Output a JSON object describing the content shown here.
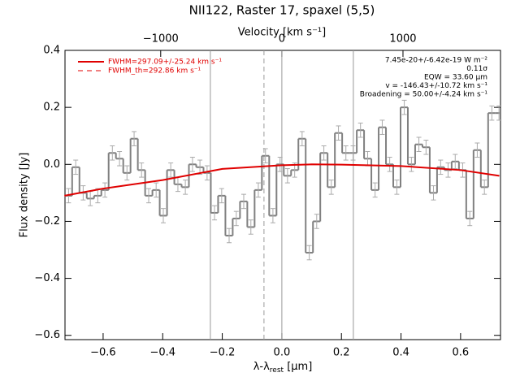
{
  "chart_data": {
    "type": "step",
    "title": "NII122, Raster 17, spaxel (5,5)",
    "xlabel": {
      "main": "λ-λ",
      "sub": "rest",
      "unit": " [μm]"
    },
    "ylabel": "Flux density [Jy]",
    "x2label": "Velocity [km s⁻¹]",
    "xlim": [
      -0.728,
      0.734
    ],
    "ylim": [
      -0.615,
      0.4
    ],
    "x2lim": [
      -1790,
      1805
    ],
    "xticks": [
      {
        "value": -0.6,
        "label": "−0.6"
      },
      {
        "value": -0.4,
        "label": "−0.4"
      },
      {
        "value": -0.2,
        "label": "−0.2"
      },
      {
        "value": 0.0,
        "label": "0.0"
      },
      {
        "value": 0.2,
        "label": "0.2"
      },
      {
        "value": 0.4,
        "label": "0.4"
      },
      {
        "value": 0.6,
        "label": "0.6"
      }
    ],
    "yticks": [
      {
        "value": -0.6,
        "label": "−0.6"
      },
      {
        "value": -0.4,
        "label": "−0.4"
      },
      {
        "value": -0.2,
        "label": "−0.2"
      },
      {
        "value": 0.0,
        "label": "0.0"
      },
      {
        "value": 0.2,
        "label": "0.2"
      },
      {
        "value": 0.4,
        "label": "0.4"
      }
    ],
    "x2ticks": [
      {
        "value": -1000,
        "label": "−1000"
      },
      0,
      1000
    ],
    "x": [
      -0.716,
      -0.692,
      -0.667,
      -0.643,
      -0.618,
      -0.594,
      -0.569,
      -0.545,
      -0.52,
      -0.496,
      -0.471,
      -0.447,
      -0.422,
      -0.398,
      -0.373,
      -0.349,
      -0.324,
      -0.3,
      -0.275,
      -0.251,
      -0.226,
      -0.202,
      -0.177,
      -0.153,
      -0.128,
      -0.104,
      -0.079,
      -0.055,
      -0.03,
      -0.006,
      0.019,
      0.043,
      0.068,
      0.092,
      0.117,
      0.141,
      0.166,
      0.19,
      0.215,
      0.239,
      0.264,
      0.288,
      0.313,
      0.337,
      0.362,
      0.386,
      0.411,
      0.435,
      0.46,
      0.484,
      0.509,
      0.533,
      0.558,
      0.582,
      0.607,
      0.631,
      0.656,
      0.68,
      0.705,
      0.729
    ],
    "series": [
      {
        "name": "spectrum",
        "color": "#808080",
        "values": [
          -0.11,
          -0.01,
          -0.1,
          -0.12,
          -0.11,
          -0.09,
          0.04,
          0.02,
          -0.03,
          0.09,
          -0.02,
          -0.11,
          -0.09,
          -0.18,
          -0.02,
          -0.07,
          -0.08,
          0.0,
          -0.01,
          -0.03,
          -0.17,
          -0.11,
          -0.25,
          -0.19,
          -0.13,
          -0.22,
          -0.09,
          0.03,
          -0.18,
          0.0,
          -0.04,
          -0.02,
          0.09,
          -0.31,
          -0.2,
          0.04,
          -0.08,
          0.11,
          0.04,
          0.04,
          0.12,
          0.02,
          -0.09,
          0.13,
          0.0,
          -0.08,
          0.2,
          0.0,
          0.07,
          0.06,
          -0.1,
          -0.01,
          -0.02,
          0.01,
          -0.02,
          -0.19,
          0.05,
          -0.08,
          0.18,
          0.18
        ],
        "errors": [
          0.025,
          0.025,
          0.025,
          0.025,
          0.025,
          0.025,
          0.025,
          0.025,
          0.025,
          0.025,
          0.025,
          0.025,
          0.025,
          0.025,
          0.025,
          0.025,
          0.025,
          0.025,
          0.025,
          0.025,
          0.025,
          0.025,
          0.025,
          0.025,
          0.025,
          0.025,
          0.025,
          0.025,
          0.025,
          0.025,
          0.025,
          0.025,
          0.025,
          0.025,
          0.025,
          0.025,
          0.025,
          0.025,
          0.025,
          0.025,
          0.025,
          0.025,
          0.025,
          0.025,
          0.025,
          0.025,
          0.025,
          0.025,
          0.025,
          0.025,
          0.025,
          0.025,
          0.025,
          0.025,
          0.025,
          0.025,
          0.025,
          0.025,
          0.025,
          0.025
        ]
      },
      {
        "name": "FWHM=297.09+/-25.24 km s⁻¹",
        "color": "#e00000",
        "type": "line",
        "x": [
          -0.73,
          -0.6,
          -0.4,
          -0.2,
          0.0,
          0.1,
          0.2,
          0.4,
          0.6,
          0.73
        ],
        "values": [
          -0.11,
          -0.085,
          -0.055,
          -0.016,
          -0.003,
          0.0,
          -0.001,
          -0.006,
          -0.02,
          -0.04
        ]
      }
    ],
    "legend_extra": {
      "name": "FWHM_th=292.86 km s⁻¹",
      "color": "#e00000"
    },
    "vlines": [
      {
        "value": -0.24,
        "style": "solid"
      },
      {
        "value": -0.06,
        "style": "dashed"
      },
      {
        "value": 0.0,
        "style": "solid"
      },
      {
        "value": 0.24,
        "style": "solid"
      }
    ],
    "annotations": [
      "7.45e-20+/-6.42e-19 W m⁻²",
      "0.11σ",
      "EQW = 33.60 μm",
      "v = -146.43+/-10.72 km s⁻¹",
      "Broadening = 50.00+/-4.24 km s⁻¹"
    ]
  }
}
